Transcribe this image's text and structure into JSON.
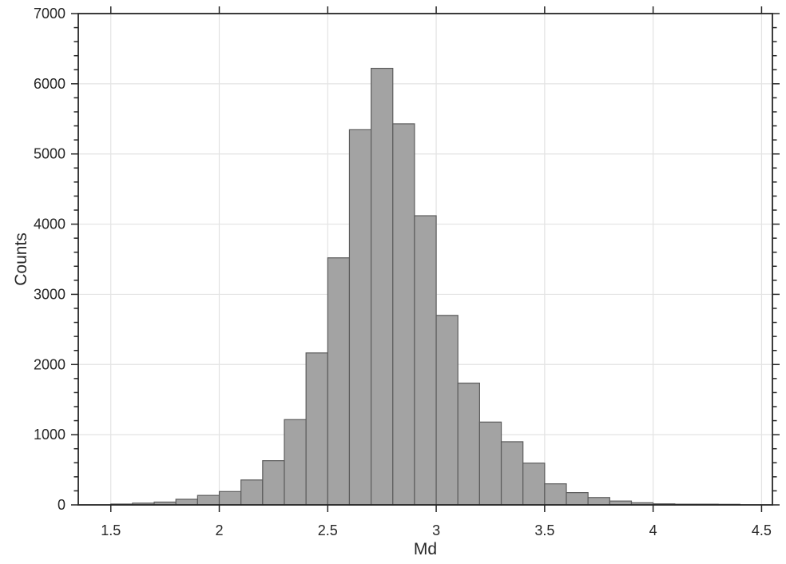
{
  "figure": {
    "background": "#ffffff",
    "title": ""
  },
  "chart_data": {
    "type": "bar",
    "subtype": "histogram",
    "title": "",
    "xlabel": "Md",
    "ylabel": "Counts",
    "bin_start": 1.5,
    "bin_width": 0.1,
    "bin_counts": [
      12,
      25,
      40,
      80,
      135,
      190,
      355,
      630,
      1215,
      2165,
      3520,
      5345,
      6220,
      5430,
      4120,
      2700,
      1735,
      1180,
      900,
      595,
      300,
      175,
      105,
      55,
      30,
      15,
      10,
      10,
      8
    ],
    "xlim": [
      1.35,
      4.55
    ],
    "ylim": [
      0,
      7000
    ],
    "x_tick_values": [
      1.5,
      2,
      2.5,
      3,
      3.5,
      4,
      4.5
    ],
    "x_tick_labels": [
      "1.5",
      "2",
      "2.5",
      "3",
      "3.5",
      "4",
      "4.5"
    ],
    "y_tick_values": [
      0,
      1000,
      2000,
      3000,
      4000,
      5000,
      6000,
      7000
    ],
    "y_tick_labels": [
      "0",
      "1000",
      "2000",
      "3000",
      "4000",
      "5000",
      "6000",
      "7000"
    ],
    "y_minor_step": 200,
    "x_minor_ticks": "none",
    "grid": "major-both",
    "legend": "none",
    "box": "on",
    "tick_direction": "out-mirrored",
    "colors": {
      "bar_fill": "#a3a3a3",
      "bar_edge": "#5c5c5c",
      "grid": "#e3e3e3",
      "axis": "#262626",
      "text": "#262626",
      "background": "#ffffff"
    }
  }
}
